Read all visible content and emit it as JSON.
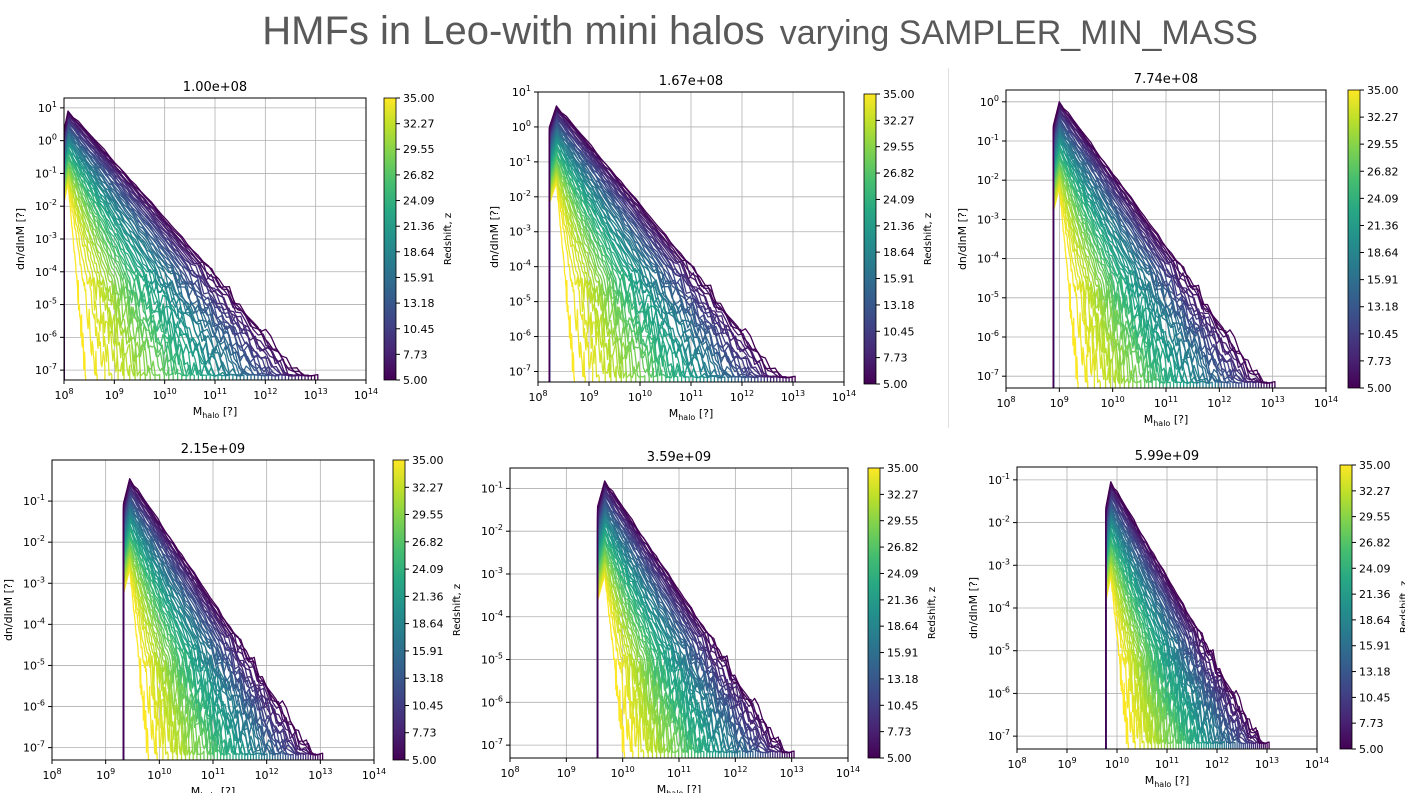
{
  "page": {
    "title_main": "HMFs in Leo-with mini halos",
    "title_suffix": "varying SAMPLER_MIN_MASS"
  },
  "chart_data": [
    {
      "type": "line",
      "title": "1.00e+08",
      "sampler_min_mass": 100000000.0,
      "xlabel": "M",
      "xlabel_sub": "halo",
      "xlabel_unit": " [?]",
      "ylabel": "dn/dlnM [?]",
      "xscale": "log",
      "yscale": "log",
      "xlim": [
        100000000.0,
        100000000000000.0
      ],
      "ylim": [
        5e-08,
        20
      ],
      "x_ticks": [
        "8",
        "9",
        "10",
        "11",
        "12",
        "13",
        "14"
      ],
      "y_ticks": [
        "1",
        "0",
        "-1",
        "-2",
        "-3",
        "-4",
        "-5",
        "-6",
        "-7"
      ],
      "grid": true,
      "peak_mass": 120000000.0,
      "peak_dndlnm_low_z": 8.0,
      "max_mass_low_z": 11000000000000.0,
      "colorbar": {
        "label": "Redshift, z",
        "cmap": "viridis",
        "min": 5.0,
        "max": 35.0,
        "ticks": [
          "35.00",
          "32.27",
          "29.55",
          "26.82",
          "24.09",
          "21.36",
          "18.64",
          "15.91",
          "13.18",
          "10.45",
          "7.73",
          "5.00"
        ]
      }
    },
    {
      "type": "line",
      "title": "1.67e+08",
      "sampler_min_mass": 167000000.0,
      "xlabel": "M",
      "xlabel_sub": "halo",
      "xlabel_unit": " [?]",
      "ylabel": "dn/dlnM [?]",
      "xscale": "log",
      "yscale": "log",
      "xlim": [
        100000000.0,
        100000000000000.0
      ],
      "ylim": [
        5e-08,
        10
      ],
      "x_ticks": [
        "8",
        "9",
        "10",
        "11",
        "12",
        "13",
        "14"
      ],
      "y_ticks": [
        "1",
        "0",
        "-1",
        "-2",
        "-3",
        "-4",
        "-5",
        "-6",
        "-7"
      ],
      "grid": true,
      "peak_mass": 230000000.0,
      "peak_dndlnm_low_z": 4.0,
      "max_mass_low_z": 11000000000000.0,
      "colorbar": {
        "label": "Redshift, z",
        "cmap": "viridis",
        "min": 5.0,
        "max": 35.0,
        "ticks": [
          "35.00",
          "32.27",
          "29.55",
          "26.82",
          "24.09",
          "21.36",
          "18.64",
          "15.91",
          "13.18",
          "10.45",
          "7.73",
          "5.00"
        ]
      }
    },
    {
      "type": "line",
      "title": "7.74e+08",
      "sampler_min_mass": 774000000.0,
      "xlabel": "M",
      "xlabel_sub": "halo",
      "xlabel_unit": " [?]",
      "ylabel": "dn/dlnM [?]",
      "xscale": "log",
      "yscale": "log",
      "xlim": [
        100000000.0,
        100000000000000.0
      ],
      "ylim": [
        5e-08,
        2
      ],
      "x_ticks": [
        "8",
        "9",
        "10",
        "11",
        "12",
        "13",
        "14"
      ],
      "y_ticks": [
        "0",
        "-1",
        "-2",
        "-3",
        "-4",
        "-5",
        "-6",
        "-7"
      ],
      "grid": true,
      "peak_mass": 1000000000.0,
      "peak_dndlnm_low_z": 1.0,
      "max_mass_low_z": 11000000000000.0,
      "colorbar": {
        "label": "Redshift, z",
        "cmap": "viridis",
        "min": 5.0,
        "max": 35.0,
        "ticks": [
          "35.00",
          "32.27",
          "29.55",
          "26.82",
          "24.09",
          "21.36",
          "18.64",
          "15.91",
          "13.18",
          "10.45",
          "7.73",
          "5.00"
        ]
      }
    },
    {
      "type": "line",
      "title": "2.15e+09",
      "sampler_min_mass": 2150000000.0,
      "xlabel": "M",
      "xlabel_sub": "halo",
      "xlabel_unit": " [?]",
      "ylabel": "dn/dlnM [?]",
      "xscale": "log",
      "yscale": "log",
      "xlim": [
        100000000.0,
        100000000000000.0
      ],
      "ylim": [
        5e-08,
        1
      ],
      "x_ticks": [
        "8",
        "9",
        "10",
        "11",
        "12",
        "13",
        "14"
      ],
      "y_ticks": [
        "-1",
        "-2",
        "-3",
        "-4",
        "-5",
        "-6",
        "-7"
      ],
      "grid": true,
      "peak_mass": 2800000000.0,
      "peak_dndlnm_low_z": 0.35,
      "max_mass_low_z": 11000000000000.0,
      "colorbar": {
        "label": "Redshift, z",
        "cmap": "viridis",
        "min": 5.0,
        "max": 35.0,
        "ticks": [
          "35.00",
          "32.27",
          "29.55",
          "26.82",
          "24.09",
          "21.36",
          "18.64",
          "15.91",
          "13.18",
          "10.45",
          "7.73",
          "5.00"
        ]
      }
    },
    {
      "type": "line",
      "title": "3.59e+09",
      "sampler_min_mass": 3590000000.0,
      "xlabel": "M",
      "xlabel_sub": "halo",
      "xlabel_unit": " [?]",
      "ylabel": "dn/dlnM [?]",
      "xscale": "log",
      "yscale": "log",
      "xlim": [
        100000000.0,
        100000000000000.0
      ],
      "ylim": [
        5e-08,
        0.3
      ],
      "x_ticks": [
        "8",
        "9",
        "10",
        "11",
        "12",
        "13",
        "14"
      ],
      "y_ticks": [
        "-1",
        "-2",
        "-3",
        "-4",
        "-5",
        "-6",
        "-7"
      ],
      "grid": true,
      "peak_mass": 4800000000.0,
      "peak_dndlnm_low_z": 0.15,
      "max_mass_low_z": 11000000000000.0,
      "colorbar": {
        "label": "Redshift, z",
        "cmap": "viridis",
        "min": 5.0,
        "max": 35.0,
        "ticks": [
          "35.00",
          "32.27",
          "29.55",
          "26.82",
          "24.09",
          "21.36",
          "18.64",
          "15.91",
          "13.18",
          "10.45",
          "7.73",
          "5.00"
        ]
      }
    },
    {
      "type": "line",
      "title": "5.99e+09",
      "sampler_min_mass": 5990000000.0,
      "xlabel": "M",
      "xlabel_sub": "halo",
      "xlabel_unit": " [?]",
      "ylabel": "dn/dlnM [?]",
      "xscale": "log",
      "yscale": "log",
      "xlim": [
        100000000.0,
        100000000000000.0
      ],
      "ylim": [
        5e-08,
        0.2
      ],
      "x_ticks": [
        "8",
        "9",
        "10",
        "11",
        "12",
        "13",
        "14"
      ],
      "y_ticks": [
        "-1",
        "-2",
        "-3",
        "-4",
        "-5",
        "-6",
        "-7"
      ],
      "grid": true,
      "peak_mass": 7500000000.0,
      "peak_dndlnm_low_z": 0.09,
      "max_mass_low_z": 11000000000000.0,
      "colorbar": {
        "label": "Redshift, z",
        "cmap": "viridis",
        "min": 5.0,
        "max": 35.0,
        "ticks": [
          "35.00",
          "32.27",
          "29.55",
          "26.82",
          "24.09",
          "21.36",
          "18.64",
          "15.91",
          "13.18",
          "10.45",
          "7.73",
          "5.00"
        ]
      }
    }
  ]
}
